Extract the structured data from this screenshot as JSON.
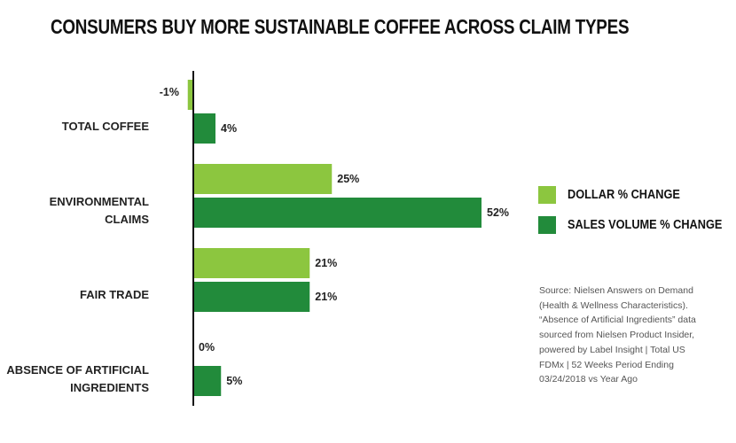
{
  "title": "CONSUMERS BUY MORE SUSTAINABLE COFFEE ACROSS CLAIM TYPES",
  "legend": {
    "items": [
      {
        "label": "DOLLAR % CHANGE",
        "color": "#8cc63f"
      },
      {
        "label": "SALES VOLUME % CHANGE",
        "color": "#228b3b"
      }
    ]
  },
  "source_text": "Source: Nielsen Answers on Demand (Health & Wellness Characteristics). “Absence of Artificial Ingredients” data sourced from Nielsen Product Insider, powered by Label Insight | Total US FDMx | 52 Weeks Period Ending 03/24/2018 vs Year Ago",
  "chart_data": {
    "type": "bar",
    "orientation": "horizontal",
    "categories": [
      [
        "TOTAL COFFEE"
      ],
      [
        "ENVIRONMENTAL",
        "CLAIMS"
      ],
      [
        "FAIR TRADE"
      ],
      [
        "ABSENCE OF ARTIFICIAL",
        "INGREDIENTS"
      ]
    ],
    "series": [
      {
        "name": "DOLLAR % CHANGE",
        "values": [
          -1,
          25,
          21,
          0
        ],
        "labels": [
          "-1%",
          "25%",
          "21%",
          "0%"
        ],
        "color": "#8cc63f"
      },
      {
        "name": "SALES VOLUME % CHANGE",
        "values": [
          4,
          52,
          21,
          5
        ],
        "labels": [
          "4%",
          "52%",
          "21%",
          "5%"
        ],
        "color": "#228b3b"
      }
    ],
    "title": "CONSUMERS BUY MORE SUSTAINABLE COFFEE ACROSS CLAIM TYPES",
    "xlabel": "",
    "ylabel": "",
    "grid": false,
    "legend_position": "right"
  }
}
